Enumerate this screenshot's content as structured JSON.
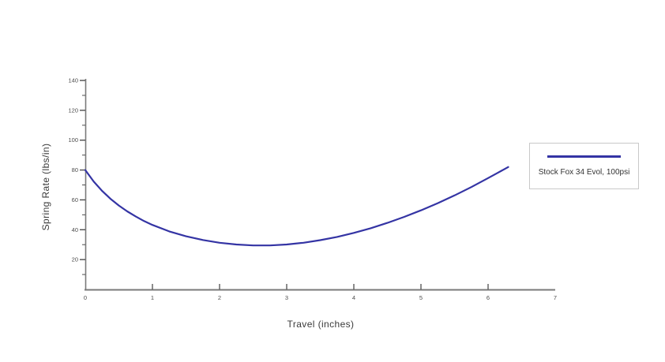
{
  "chart_data": {
    "type": "line",
    "title": "",
    "xlabel": "Travel (inches)",
    "ylabel": "Spring Rate (lbs/in)",
    "xlim": [
      0,
      7
    ],
    "ylim": [
      0,
      140
    ],
    "grid": false,
    "legend_position": "right-outside",
    "xtick_labels": [
      0,
      1,
      2,
      3,
      4,
      5,
      6,
      7
    ],
    "xtick_marks": [
      1,
      2,
      3,
      4,
      5,
      6
    ],
    "ytick_major": [
      20,
      40,
      60,
      80,
      100,
      120,
      140
    ],
    "ytick_minor": [
      10,
      30,
      50,
      70,
      90,
      110,
      130
    ],
    "series": [
      {
        "name": "Stock Fox 34 Evol, 100psi",
        "color": "#3434a4",
        "points": [
          [
            0.0,
            80.0
          ],
          [
            0.125,
            72.3
          ],
          [
            0.25,
            66.0
          ],
          [
            0.375,
            60.7
          ],
          [
            0.5,
            56.2
          ],
          [
            0.625,
            52.3
          ],
          [
            0.75,
            48.9
          ],
          [
            0.875,
            45.8
          ],
          [
            1.0,
            43.2
          ],
          [
            1.25,
            38.9
          ],
          [
            1.5,
            35.6
          ],
          [
            1.75,
            33.1
          ],
          [
            2.0,
            31.3
          ],
          [
            2.25,
            30.1
          ],
          [
            2.5,
            29.5
          ],
          [
            2.75,
            29.5
          ],
          [
            3.0,
            30.1
          ],
          [
            3.25,
            31.3
          ],
          [
            3.5,
            33.0
          ],
          [
            3.75,
            35.2
          ],
          [
            4.0,
            37.9
          ],
          [
            4.25,
            41.0
          ],
          [
            4.5,
            44.6
          ],
          [
            4.75,
            48.6
          ],
          [
            5.0,
            53.0
          ],
          [
            5.25,
            57.8
          ],
          [
            5.5,
            63.0
          ],
          [
            5.75,
            68.6
          ],
          [
            6.0,
            74.6
          ],
          [
            6.15,
            78.3
          ],
          [
            6.3,
            82.0
          ]
        ]
      }
    ],
    "colors": {
      "line": "#3434a4",
      "axis": "#7a7a7a",
      "tick": "#4d4d4d",
      "tick_label": "#4d4d4d",
      "legend_border": "#c9c9c9",
      "background": "#ffffff"
    }
  },
  "legend": {
    "label": "Stock Fox 34 Evol, 100psi"
  }
}
